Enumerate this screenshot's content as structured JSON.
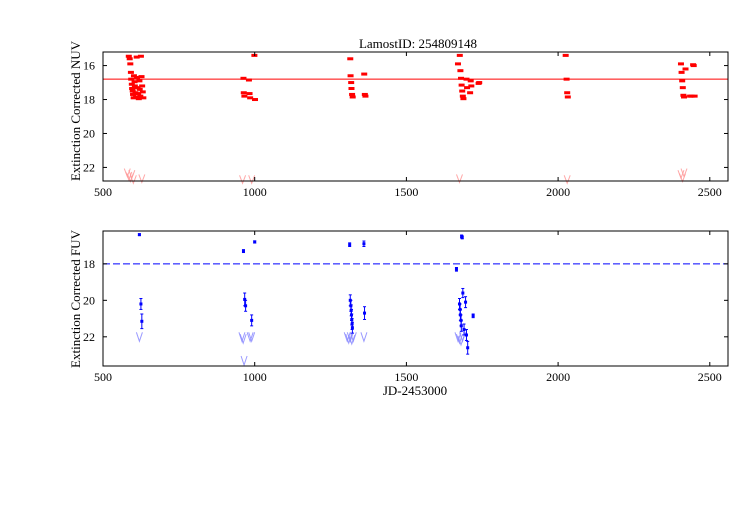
{
  "chart_data": [
    {
      "type": "scatter",
      "title": "LamostID: 254809148",
      "xlabel": "",
      "ylabel": "Extinction Corrected NUV",
      "xlim": [
        500,
        2560
      ],
      "ylim": [
        22.8,
        15.2
      ],
      "y_inverted": true,
      "xticks": [
        "500",
        "1000",
        "1500",
        "2000",
        "2500"
      ],
      "yticks": [
        "16",
        "18",
        "20",
        "22"
      ],
      "colors": {
        "points": "#ff0000",
        "upper_limits": "#ff9999",
        "reference_line": "#ff0000"
      },
      "reference_line": 16.8,
      "points": [
        {
          "x": 585,
          "y": 15.45
        },
        {
          "x": 588,
          "y": 15.6
        },
        {
          "x": 590,
          "y": 15.9
        },
        {
          "x": 592,
          "y": 16.4
        },
        {
          "x": 593,
          "y": 16.8
        },
        {
          "x": 595,
          "y": 17.1
        },
        {
          "x": 596,
          "y": 17.35
        },
        {
          "x": 598,
          "y": 17.5
        },
        {
          "x": 599,
          "y": 17.7
        },
        {
          "x": 601,
          "y": 17.9
        },
        {
          "x": 602,
          "y": 16.6
        },
        {
          "x": 604,
          "y": 16.95
        },
        {
          "x": 605,
          "y": 17.2
        },
        {
          "x": 607,
          "y": 17.6
        },
        {
          "x": 609,
          "y": 17.85
        },
        {
          "x": 611,
          "y": 15.5
        },
        {
          "x": 612,
          "y": 16.7
        },
        {
          "x": 614,
          "y": 17.3
        },
        {
          "x": 616,
          "y": 17.65
        },
        {
          "x": 618,
          "y": 17.95
        },
        {
          "x": 620,
          "y": 16.9
        },
        {
          "x": 621,
          "y": 17.4
        },
        {
          "x": 623,
          "y": 17.8
        },
        {
          "x": 625,
          "y": 15.45
        },
        {
          "x": 627,
          "y": 16.65
        },
        {
          "x": 629,
          "y": 17.2
        },
        {
          "x": 631,
          "y": 17.55
        },
        {
          "x": 633,
          "y": 17.9
        },
        {
          "x": 963,
          "y": 16.75
        },
        {
          "x": 964,
          "y": 17.6
        },
        {
          "x": 966,
          "y": 17.8
        },
        {
          "x": 981,
          "y": 16.85
        },
        {
          "x": 983,
          "y": 17.65
        },
        {
          "x": 985,
          "y": 17.9
        },
        {
          "x": 999,
          "y": 15.4
        },
        {
          "x": 1001,
          "y": 18.0
        },
        {
          "x": 1315,
          "y": 15.6
        },
        {
          "x": 1316,
          "y": 16.6
        },
        {
          "x": 1318,
          "y": 17.0
        },
        {
          "x": 1319,
          "y": 17.35
        },
        {
          "x": 1321,
          "y": 17.7
        },
        {
          "x": 1323,
          "y": 17.85
        },
        {
          "x": 1361,
          "y": 16.5
        },
        {
          "x": 1363,
          "y": 17.7
        },
        {
          "x": 1365,
          "y": 17.8
        },
        {
          "x": 1670,
          "y": 15.9
        },
        {
          "x": 1676,
          "y": 15.4
        },
        {
          "x": 1678,
          "y": 16.3
        },
        {
          "x": 1680,
          "y": 16.75
        },
        {
          "x": 1682,
          "y": 17.15
        },
        {
          "x": 1684,
          "y": 17.5
        },
        {
          "x": 1686,
          "y": 17.8
        },
        {
          "x": 1688,
          "y": 17.95
        },
        {
          "x": 1698,
          "y": 16.8
        },
        {
          "x": 1700,
          "y": 17.3
        },
        {
          "x": 1710,
          "y": 17.6
        },
        {
          "x": 1712,
          "y": 16.9
        },
        {
          "x": 1714,
          "y": 17.2
        },
        {
          "x": 1738,
          "y": 17.05
        },
        {
          "x": 1740,
          "y": 17.0
        },
        {
          "x": 2025,
          "y": 15.4
        },
        {
          "x": 2028,
          "y": 16.8
        },
        {
          "x": 2030,
          "y": 17.6
        },
        {
          "x": 2032,
          "y": 17.85
        },
        {
          "x": 2405,
          "y": 15.9
        },
        {
          "x": 2407,
          "y": 16.4
        },
        {
          "x": 2409,
          "y": 16.9
        },
        {
          "x": 2411,
          "y": 17.3
        },
        {
          "x": 2413,
          "y": 17.75
        },
        {
          "x": 2415,
          "y": 17.85
        },
        {
          "x": 2420,
          "y": 16.2
        },
        {
          "x": 2435,
          "y": 17.8
        },
        {
          "x": 2440,
          "y": 17.8
        },
        {
          "x": 2450,
          "y": 17.8
        },
        {
          "x": 2445,
          "y": 15.95
        },
        {
          "x": 2447,
          "y": 16.0
        }
      ],
      "upper_limits": [
        {
          "x": 580,
          "y": 22.3
        },
        {
          "x": 585,
          "y": 22.5
        },
        {
          "x": 590,
          "y": 22.6
        },
        {
          "x": 595,
          "y": 22.4
        },
        {
          "x": 600,
          "y": 22.7
        },
        {
          "x": 628,
          "y": 22.65
        },
        {
          "x": 960,
          "y": 22.7
        },
        {
          "x": 990,
          "y": 22.7
        },
        {
          "x": 1675,
          "y": 22.65
        },
        {
          "x": 2030,
          "y": 22.7
        },
        {
          "x": 2405,
          "y": 22.4
        },
        {
          "x": 2410,
          "y": 22.6
        },
        {
          "x": 2415,
          "y": 22.3
        }
      ]
    },
    {
      "type": "scatter",
      "title": "",
      "xlabel": "JD-2453000",
      "ylabel": "Extinction Corrected FUV",
      "xlim": [
        500,
        2560
      ],
      "ylim": [
        23.6,
        16.2
      ],
      "y_inverted": true,
      "xticks": [
        "500",
        "1000",
        "1500",
        "2000",
        "2500"
      ],
      "yticks": [
        "18",
        "20",
        "22"
      ],
      "colors": {
        "points": "#0000ff",
        "upper_limits": "#8888ff",
        "reference_line": "#0000ff"
      },
      "reference_line": 18.0,
      "points": [
        {
          "x": 620,
          "y": 16.4,
          "err": 0.05
        },
        {
          "x": 625,
          "y": 20.2,
          "err": 0.3
        },
        {
          "x": 628,
          "y": 21.15,
          "err": 0.4
        },
        {
          "x": 963,
          "y": 17.3,
          "err": 0.08
        },
        {
          "x": 967,
          "y": 19.95,
          "err": 0.35
        },
        {
          "x": 970,
          "y": 20.3,
          "err": 0.3
        },
        {
          "x": 990,
          "y": 21.1,
          "err": 0.3
        },
        {
          "x": 1000,
          "y": 16.8,
          "err": 0.06
        },
        {
          "x": 1313,
          "y": 16.95,
          "err": 0.1
        },
        {
          "x": 1315,
          "y": 20.0,
          "err": 0.3
        },
        {
          "x": 1317,
          "y": 20.3,
          "err": 0.3
        },
        {
          "x": 1318,
          "y": 20.55,
          "err": 0.3
        },
        {
          "x": 1319,
          "y": 20.8,
          "err": 0.3
        },
        {
          "x": 1320,
          "y": 21.05,
          "err": 0.3
        },
        {
          "x": 1321,
          "y": 21.3,
          "err": 0.3
        },
        {
          "x": 1322,
          "y": 21.5,
          "err": 0.3
        },
        {
          "x": 1360,
          "y": 16.9,
          "err": 0.15
        },
        {
          "x": 1362,
          "y": 20.7,
          "err": 0.35
        },
        {
          "x": 1665,
          "y": 18.3,
          "err": 0.1
        },
        {
          "x": 1675,
          "y": 20.2,
          "err": 0.3
        },
        {
          "x": 1677,
          "y": 20.5,
          "err": 0.3
        },
        {
          "x": 1678,
          "y": 20.8,
          "err": 0.3
        },
        {
          "x": 1680,
          "y": 21.1,
          "err": 0.3
        },
        {
          "x": 1681,
          "y": 21.4,
          "err": 0.3
        },
        {
          "x": 1682,
          "y": 16.5,
          "err": 0.08
        },
        {
          "x": 1684,
          "y": 16.55,
          "err": 0.08
        },
        {
          "x": 1686,
          "y": 19.6,
          "err": 0.25
        },
        {
          "x": 1690,
          "y": 21.6,
          "err": 0.3
        },
        {
          "x": 1695,
          "y": 20.1,
          "err": 0.3
        },
        {
          "x": 1698,
          "y": 21.9,
          "err": 0.3
        },
        {
          "x": 1702,
          "y": 22.6,
          "err": 0.35
        },
        {
          "x": 1720,
          "y": 20.85,
          "err": 0.1
        }
      ],
      "upper_limits": [
        {
          "x": 620,
          "y": 22.0
        },
        {
          "x": 958,
          "y": 22.0
        },
        {
          "x": 962,
          "y": 22.1
        },
        {
          "x": 965,
          "y": 23.3
        },
        {
          "x": 985,
          "y": 22.0
        },
        {
          "x": 990,
          "y": 22.0
        },
        {
          "x": 1305,
          "y": 22.0
        },
        {
          "x": 1310,
          "y": 22.1
        },
        {
          "x": 1315,
          "y": 22.0
        },
        {
          "x": 1320,
          "y": 22.15
        },
        {
          "x": 1325,
          "y": 22.0
        },
        {
          "x": 1360,
          "y": 22.0
        },
        {
          "x": 1670,
          "y": 22.0
        },
        {
          "x": 1675,
          "y": 22.1
        },
        {
          "x": 1680,
          "y": 22.2
        },
        {
          "x": 1685,
          "y": 22.0
        }
      ]
    }
  ]
}
